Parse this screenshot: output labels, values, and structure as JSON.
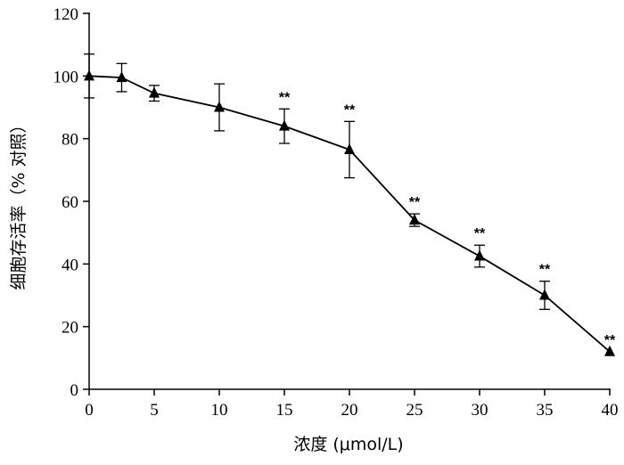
{
  "chart_data": {
    "type": "line",
    "xlabel": "浓度 (μmol/L)",
    "ylabel": "细胞存活率（% 对照）",
    "xlim": [
      0,
      40
    ],
    "ylim": [
      0,
      120
    ],
    "xticks": [
      0,
      5,
      10,
      15,
      20,
      25,
      30,
      35,
      40
    ],
    "yticks": [
      0,
      20,
      40,
      60,
      80,
      100,
      120
    ],
    "grid": false,
    "marker": "triangle",
    "series": [
      {
        "x": [
          0,
          2.5,
          5,
          10,
          15,
          20,
          25,
          30,
          35,
          40
        ],
        "y": [
          100,
          99.5,
          94.5,
          90,
          84,
          76.5,
          54,
          42.5,
          30,
          12
        ],
        "error": [
          7,
          4.5,
          2.5,
          7.5,
          5.5,
          9,
          2,
          3.5,
          4.5,
          0
        ],
        "significance": [
          "",
          "",
          "",
          "",
          "**",
          "**",
          "**",
          "**",
          "**",
          "**"
        ]
      }
    ]
  }
}
